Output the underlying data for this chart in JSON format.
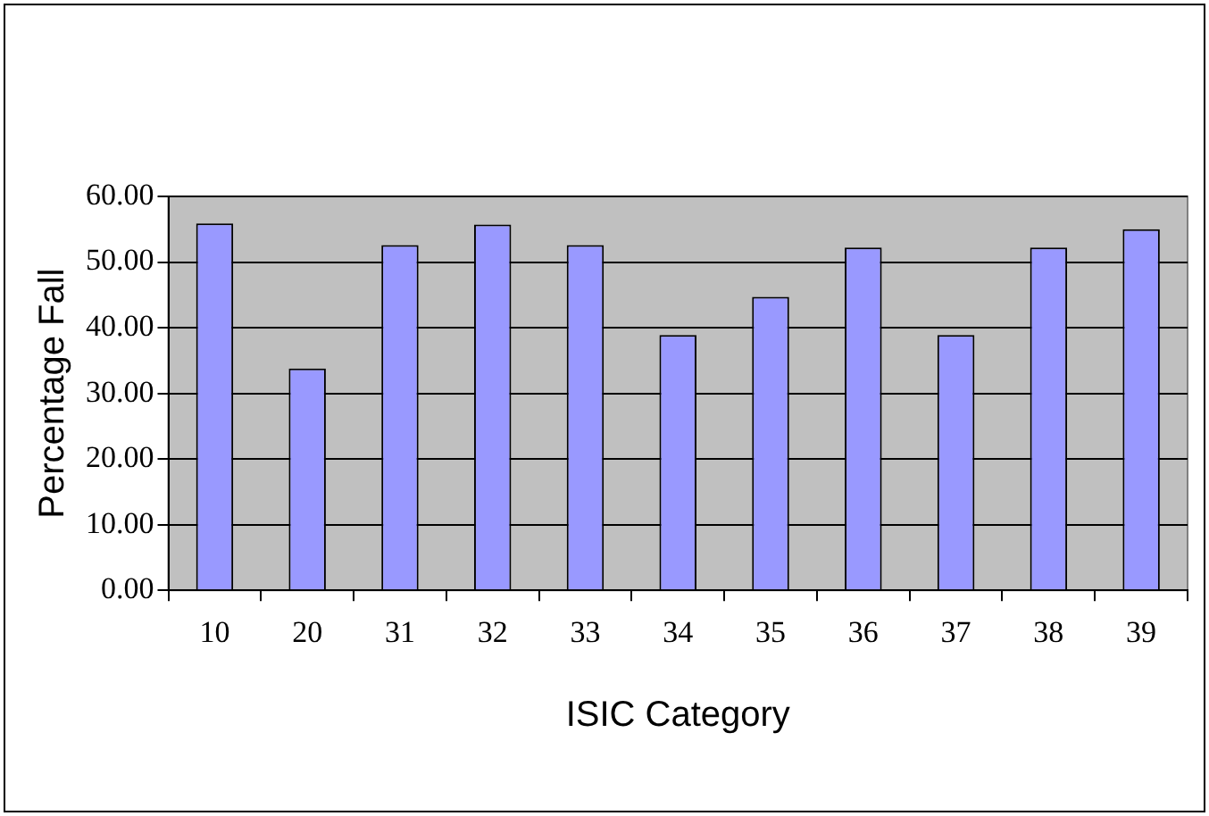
{
  "chart_data": {
    "type": "bar",
    "xlabel": "ISIC Category",
    "ylabel": "Percentage Fall",
    "categories": [
      "10",
      "20",
      "31",
      "32",
      "33",
      "34",
      "35",
      "36",
      "37",
      "38",
      "39"
    ],
    "values": [
      55.9,
      33.8,
      52.6,
      55.7,
      52.6,
      38.9,
      44.7,
      52.2,
      38.9,
      52.2,
      55.0
    ],
    "color": "#9999ff",
    "ylim": [
      0,
      60
    ],
    "yticks": [
      {
        "value": 0,
        "label": "0.00"
      },
      {
        "value": 10,
        "label": "10.00"
      },
      {
        "value": 20,
        "label": "20.00"
      },
      {
        "value": 30,
        "label": "30.00"
      },
      {
        "value": 40,
        "label": "40.00"
      },
      {
        "value": 50,
        "label": "50.00"
      },
      {
        "value": 60,
        "label": "60.00"
      }
    ],
    "grid": "y",
    "legend": false
  }
}
